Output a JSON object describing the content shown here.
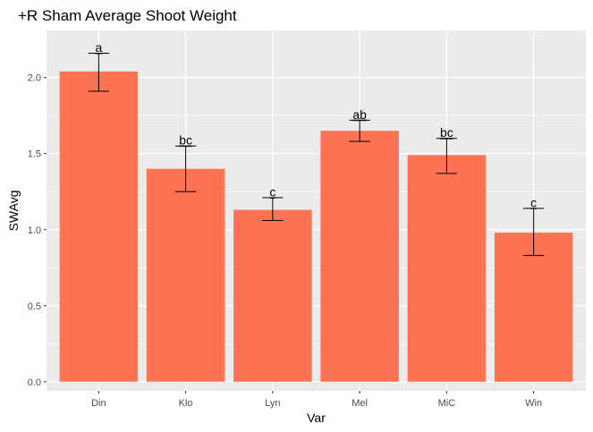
{
  "chart_data": {
    "type": "bar",
    "title": "+R Sham Average Shoot Weight",
    "xlabel": "Var",
    "ylabel": "SWAvg",
    "categories": [
      "Din",
      "Klo",
      "Lyn",
      "Mel",
      "MiC",
      "Win"
    ],
    "values": [
      2.04,
      1.4,
      1.13,
      1.65,
      1.49,
      0.98
    ],
    "error_low": [
      1.91,
      1.25,
      1.06,
      1.58,
      1.37,
      0.83
    ],
    "error_high": [
      2.16,
      1.55,
      1.21,
      1.72,
      1.6,
      1.14
    ],
    "significance_labels": [
      "a",
      "bc",
      "c",
      "ab",
      "bc",
      "c"
    ],
    "ylim": [
      -0.06,
      2.31
    ],
    "yticks": [
      0.0,
      0.5,
      1.0,
      1.5,
      2.0
    ],
    "ytick_labels": [
      "0.0",
      "0.5",
      "1.0",
      "1.5",
      "2.0"
    ],
    "grid": true,
    "bar_color": "#FF7355",
    "panel_color": "#EBEBEB",
    "grid_color": "#FFFFFF"
  }
}
